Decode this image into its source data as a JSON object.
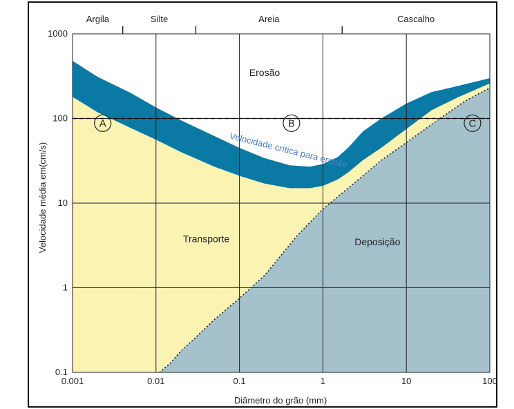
{
  "chart_data": {
    "type": "area",
    "xlabel": "Diâmetro do grão  (mm)",
    "ylabel": "Velocidade média em(cm/s)",
    "xscale": "log",
    "yscale": "log",
    "xlim": [
      0.001,
      100
    ],
    "ylim": [
      0.1,
      1000
    ],
    "grid": true,
    "x_ticks": [
      0.001,
      0.01,
      0.1,
      1,
      10,
      100
    ],
    "x_tick_labels": [
      "0.001",
      "0.01",
      "0.1",
      "1",
      "10",
      "100"
    ],
    "y_ticks": [
      0.1,
      1,
      10,
      100,
      1000
    ],
    "y_tick_labels": [
      "0.1",
      "1",
      "10",
      "100",
      "1000"
    ],
    "grain_classes": [
      {
        "label": "Argila",
        "from": 0.001,
        "to": 0.004
      },
      {
        "label": "Silte",
        "from": 0.004,
        "to": 0.03
      },
      {
        "label": "Areia",
        "from": 0.03,
        "to": 1.7
      },
      {
        "label": "Cascalho",
        "from": 1.7,
        "to": 100
      }
    ],
    "regions": [
      {
        "label": "Erosão",
        "x": 0.2,
        "y": 350
      },
      {
        "label": "Transporte",
        "x": 0.04,
        "y": 3.8
      },
      {
        "label": "Deposição",
        "x": 4.5,
        "y": 3.5
      }
    ],
    "markers": [
      {
        "label": "A",
        "x": 0.0023,
        "y": 88
      },
      {
        "label": "B",
        "x": 0.42,
        "y": 88
      },
      {
        "label": "C",
        "x": 62,
        "y": 88
      }
    ],
    "reference_line": {
      "y": 100,
      "style": "dashed"
    },
    "curve_label": "Velocidade crítica para erosão",
    "series": [
      {
        "name": "erosion_band_upper",
        "x": [
          0.001,
          0.002,
          0.005,
          0.01,
          0.02,
          0.05,
          0.1,
          0.2,
          0.4,
          0.7,
          1,
          1.5,
          2,
          3,
          5,
          10,
          20,
          40,
          100
        ],
        "y": [
          480,
          310,
          200,
          135,
          95,
          62,
          45,
          34,
          28,
          27,
          29,
          35,
          45,
          70,
          100,
          150,
          205,
          240,
          300
        ]
      },
      {
        "name": "erosion_band_lower",
        "x": [
          0.001,
          0.002,
          0.005,
          0.01,
          0.02,
          0.05,
          0.1,
          0.2,
          0.4,
          0.7,
          1,
          1.5,
          2,
          3,
          5,
          10,
          20,
          40,
          100
        ],
        "y": [
          180,
          118,
          77,
          56,
          40,
          27,
          21,
          17,
          15,
          15,
          16,
          19,
          23,
          32,
          45,
          75,
          125,
          175,
          260
        ]
      },
      {
        "name": "deposition_boundary",
        "x": [
          0.011,
          0.015,
          0.02,
          0.03,
          0.05,
          0.1,
          0.2,
          0.5,
          1,
          2,
          5,
          10,
          20,
          50,
          100
        ],
        "y": [
          0.1,
          0.13,
          0.18,
          0.26,
          0.42,
          0.75,
          1.4,
          4.2,
          8.5,
          15,
          32,
          52,
          85,
          160,
          230
        ]
      }
    ],
    "colors": {
      "transport": "#fbf3b2",
      "deposition": "#a4c1cc",
      "erosion_band": "#0a7aa4",
      "curve_label": "#4a7ec8"
    }
  }
}
